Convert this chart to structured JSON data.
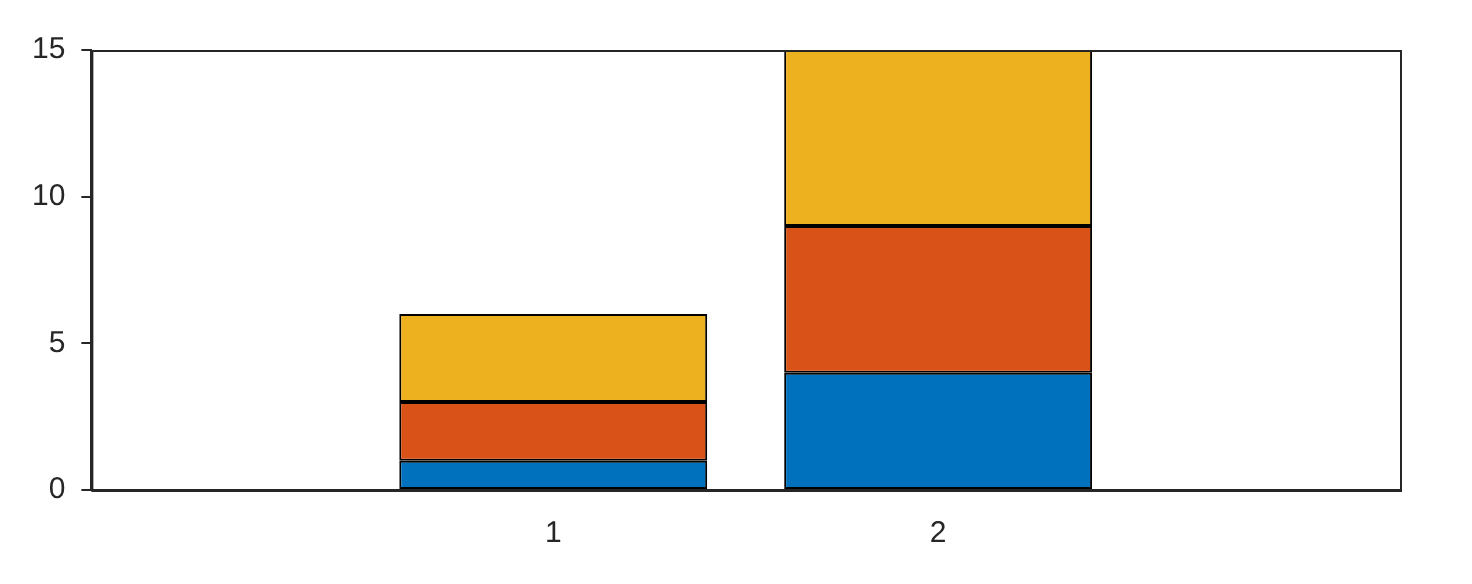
{
  "chart_data": {
    "type": "bar",
    "stacked": true,
    "x": [
      1,
      2
    ],
    "xlim": [
      -0.2,
      3.2
    ],
    "xticks": [
      1,
      2
    ],
    "ylim": [
      0,
      15
    ],
    "yticks": [
      0,
      5,
      10,
      15
    ],
    "grid": false,
    "legend": false,
    "series": [
      {
        "color": "#0072bd",
        "values": [
          1,
          4
        ]
      },
      {
        "color": "#d95319",
        "values": [
          2,
          5
        ]
      },
      {
        "color": "#edb120",
        "values": [
          3,
          6
        ]
      }
    ]
  }
}
